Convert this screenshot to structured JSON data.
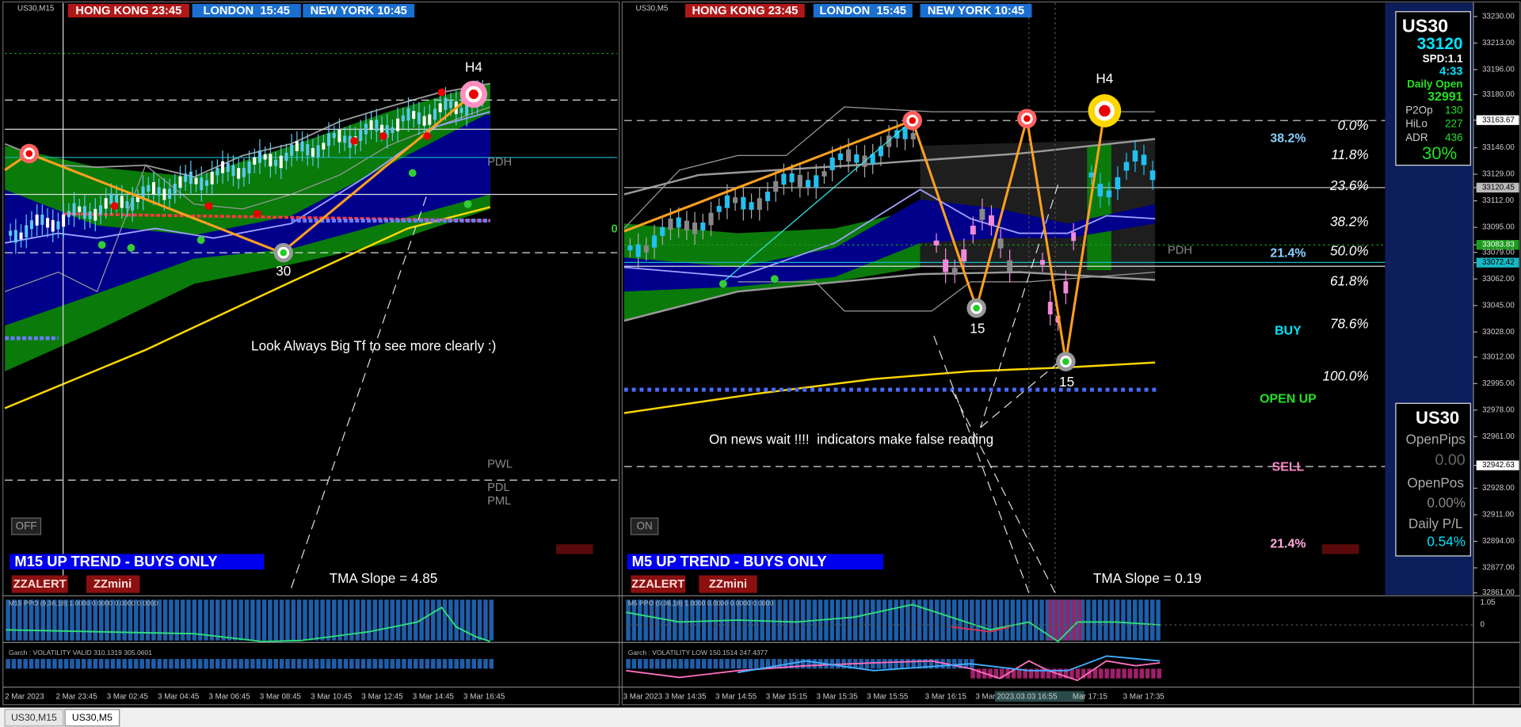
{
  "tabs": [
    "US30,M15",
    "US30,M5"
  ],
  "left": {
    "symbol": "US30,M15",
    "sessions": [
      "HONG KONG 23:45",
      "LONDON  15:45",
      "NEW YORK 10:45"
    ],
    "h4": "H4",
    "swing": "30",
    "pdh": "PDH",
    "pwl": "PWL",
    "pdl": "PDL",
    "pml": "PML",
    "note": "Look Always Big Tf to see more clearly :)",
    "button": "OFF",
    "trend": "M15 UP TREND - BUYS ONLY",
    "alerts": [
      "ZZALERT",
      "ZZmini"
    ],
    "slope": "TMA Slope = 4.85",
    "ppo": "M15 PPO (9,36,18) 1.0000 0.0000 0.0000 0.0000",
    "garch": "Garch : VOLATILITY VALID 310.1319 305.0601",
    "times": [
      "2 Mar 2023",
      "2 Mar 23:45",
      "3 Mar 02:45",
      "3 Mar 04:45",
      "3 Mar 06:45",
      "3 Mar 08:45",
      "3 Mar 10:45",
      "3 Mar 12:45",
      "3 Mar 14:45",
      "3 Mar 16:45"
    ]
  },
  "right": {
    "symbol": "US30,M5",
    "sessions": [
      "HONG KONG 23:45",
      "LONDON  15:45",
      "NEW YORK 10:45"
    ],
    "h4": "H4",
    "swings": [
      "15",
      "15"
    ],
    "zero": "0",
    "pdh": "PDH",
    "note": "On news wait !!!!  indicators make false reading",
    "button": "ON",
    "trend": "M5 UP TREND - BUYS ONLY",
    "alerts": [
      "ZZALERT",
      "ZZmini"
    ],
    "slope": "TMA Slope = 0.19",
    "ppo": "M5 PPO (9,36,18) 1.0000 0.0000 0.0000 0.0000",
    "garch": "Garch : VOLATILITY LOW 150.1514 247.4377",
    "fib": [
      "0.0%",
      "11.8%",
      "23.6%",
      "38.2%",
      "50.0%",
      "61.8%",
      "78.6%",
      "100.0%"
    ],
    "levels": [
      "38.2%",
      "21.4%",
      "BUY",
      "OPEN UP",
      "SELL",
      "21.4%"
    ],
    "times": [
      "3 Mar 2023",
      "3 Mar 14:35",
      "3 Mar 14:55",
      "3 Mar 15:15",
      "3 Mar 15:35",
      "3 Mar 15:55",
      "3 Mar 16:15",
      "3 Mar",
      "2023.03.03 16:55",
      "Mar 17:15",
      "3 Mar 17:35"
    ]
  },
  "info": {
    "symbol": "US30",
    "price": "33120",
    "spread": "SPD:1.1",
    "timer": "4:33",
    "open_label": "Daily Open",
    "open": "32991",
    "rows": [
      [
        "P2Op",
        "130"
      ],
      [
        "HiLo",
        "227"
      ],
      [
        "ADR",
        "436"
      ]
    ],
    "percent": "30%"
  },
  "trade": {
    "symbol": "US30",
    "pips_label": "OpenPips",
    "pips": "0.00",
    "pos_label": "OpenPos",
    "pos": "0.00%",
    "pl_label": "Daily P/L",
    "pl": "0.54%"
  },
  "price_axis": [
    "33230.00",
    "33213.00",
    "33196.00",
    "33180.00",
    "33163.67",
    "33146.00",
    "33129.00",
    "33120.45",
    "33112.00",
    "33095.00",
    "33083.83",
    "33079.00",
    "33072.42",
    "33062.00",
    "33045.00",
    "33028.00",
    "33012.00",
    "32995.00",
    "32978.00",
    "32961.00",
    "32942.63",
    "32928.00",
    "32911.00",
    "32894.00",
    "32877.00",
    "32861.00"
  ],
  "ppo_axis": [
    "1.05",
    "0"
  ]
}
